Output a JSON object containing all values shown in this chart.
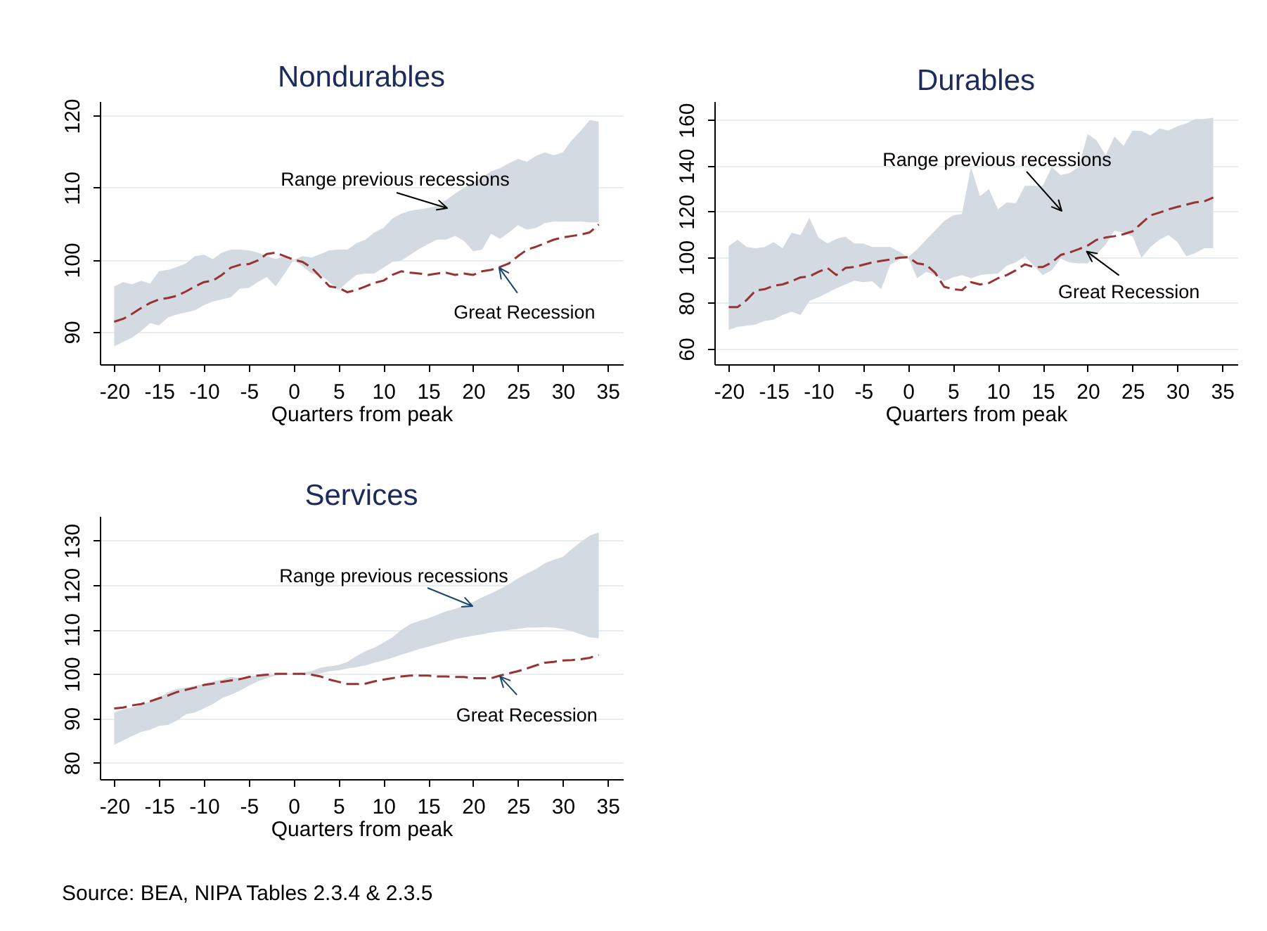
{
  "chart_data": [
    {
      "type": "line",
      "title": "Nondurables",
      "xlabel": "Quarters from peak",
      "x": [
        -20,
        -19,
        -18,
        -17,
        -16,
        -15,
        -14,
        -13,
        -12,
        -11,
        -10,
        -9,
        -8,
        -7,
        -6,
        -5,
        -4,
        -3,
        -2,
        -1,
        0,
        1,
        2,
        3,
        4,
        5,
        6,
        7,
        8,
        9,
        10,
        11,
        12,
        13,
        14,
        15,
        16,
        17,
        18,
        19,
        20,
        21,
        22,
        23,
        24,
        25,
        26,
        27,
        28,
        29,
        30,
        31,
        32,
        33,
        34
      ],
      "xlim": [
        -21.6,
        36.7
      ],
      "xticks": [
        -20,
        -15,
        -10,
        -5,
        0,
        5,
        10,
        15,
        20,
        25,
        30,
        35
      ],
      "ylim": [
        85.5,
        122
      ],
      "yticks": [
        90,
        100,
        110,
        120
      ],
      "grid": "y",
      "line_style": "dashed",
      "series": [
        {
          "color": "#993333",
          "values": [
            91.4,
            91.8,
            92.5,
            93.3,
            94.0,
            94.5,
            94.7,
            95.0,
            95.6,
            96.3,
            96.9,
            97.1,
            97.9,
            98.9,
            99.3,
            99.4,
            99.9,
            100.8,
            101.0,
            100.5,
            100,
            99.7,
            98.9,
            97.6,
            96.3,
            96.1,
            95.5,
            95.8,
            96.3,
            96.8,
            97.1,
            97.9,
            98.4,
            98.2,
            98.1,
            97.9,
            98.1,
            98.2,
            97.9,
            98.1,
            97.9,
            98.4,
            98.6,
            99.0,
            99.5,
            100.5,
            101.4,
            101.8,
            102.3,
            102.8,
            103.1,
            103.3,
            103.5,
            103.8,
            104.9
          ],
          "lower": [
            88.0,
            88.6,
            89.2,
            90.1,
            91.2,
            90.9,
            92.0,
            92.4,
            92.7,
            93.0,
            93.7,
            94.2,
            94.5,
            94.8,
            96.0,
            96.1,
            96.9,
            97.6,
            96.3,
            98.1,
            100,
            99.1,
            98.1,
            97.9,
            96.9,
            95.8,
            96.9,
            97.9,
            98.1,
            98.1,
            98.9,
            99.7,
            99.9,
            100.7,
            101.5,
            102.2,
            102.8,
            102.8,
            103.3,
            102.6,
            101.2,
            101.4,
            103.6,
            102.9,
            103.8,
            104.8,
            104.2,
            104.4,
            105.1,
            105.3,
            105.3,
            105.3,
            105.3,
            105.2,
            105.2
          ],
          "upper": [
            96.3,
            96.9,
            96.6,
            97.1,
            96.7,
            98.4,
            98.6,
            99.0,
            99.5,
            100.5,
            100.7,
            100.1,
            101.0,
            101.4,
            101.4,
            101.3,
            101.0,
            100.5,
            100.1,
            100.5,
            100,
            100.5,
            100.3,
            100.8,
            101.3,
            101.4,
            101.4,
            102.3,
            102.8,
            103.8,
            104.4,
            105.7,
            106.4,
            106.8,
            107.0,
            107.2,
            107.5,
            108.3,
            109.2,
            110.0,
            110.8,
            111.4,
            112.3,
            112.7,
            113.4,
            114.0,
            113.6,
            114.4,
            114.9,
            114.5,
            114.9,
            116.6,
            117.9,
            119.4,
            119.2
          ]
        }
      ],
      "annotations": [
        "Range previous recessions",
        {
          "text": "Great Recession",
          "x": 22.9,
          "y": 98.9
        }
      ]
    },
    {
      "type": "line",
      "title": "Durables",
      "xlabel": "Quarters from peak",
      "x": [
        -20,
        -19,
        -18,
        -17,
        -16,
        -15,
        -14,
        -13,
        -12,
        -11,
        -10,
        -9,
        -8,
        -7,
        -6,
        -5,
        -4,
        -3,
        -2,
        -1,
        0,
        1,
        2,
        3,
        4,
        5,
        6,
        7,
        8,
        9,
        10,
        11,
        12,
        13,
        14,
        15,
        16,
        17,
        18,
        19,
        20,
        21,
        22,
        23,
        24,
        25,
        26,
        27,
        28,
        29,
        30,
        31,
        32,
        33,
        34
      ],
      "xlim": [
        -21.6,
        36.7
      ],
      "xticks": [
        -20,
        -15,
        -10,
        -5,
        0,
        5,
        10,
        15,
        20,
        25,
        30,
        35
      ],
      "ylim": [
        53.2,
        168.2
      ],
      "yticks": [
        60,
        80,
        100,
        120,
        140,
        160
      ],
      "grid": "y",
      "line_style": "dashed",
      "series": [
        {
          "color": "#993333",
          "values": [
            78.2,
            78.2,
            81.3,
            85.4,
            86.0,
            87.5,
            88.1,
            89.5,
            91.2,
            91.6,
            93.6,
            95.3,
            92.2,
            95.3,
            95.7,
            96.7,
            97.7,
            98.4,
            99.0,
            99.8,
            100,
            97.3,
            96.7,
            93.2,
            87.1,
            86.0,
            85.6,
            89.1,
            88.1,
            88.7,
            90.8,
            92.2,
            94.3,
            96.9,
            95.7,
            95.7,
            97.7,
            101.0,
            102.1,
            103.5,
            105.1,
            107.6,
            108.6,
            109.2,
            110.1,
            111.3,
            114.8,
            118.3,
            119.5,
            120.9,
            122.0,
            123.0,
            124.0,
            124.4,
            126.1
          ],
          "lower": [
            68.2,
            69.6,
            70.0,
            70.6,
            72.1,
            72.7,
            74.7,
            76.2,
            74.7,
            80.9,
            82.5,
            84.4,
            86.4,
            88.1,
            89.7,
            89.1,
            89.5,
            86.0,
            96.7,
            99.0,
            100,
            90.8,
            93.6,
            92.2,
            89.5,
            91.2,
            92.2,
            90.8,
            92.2,
            92.6,
            92.8,
            96.3,
            97.7,
            100.4,
            96.3,
            92.2,
            94.3,
            99.4,
            97.7,
            97.3,
            97.3,
            101.4,
            105.5,
            111.7,
            110.7,
            109.2,
            99.8,
            104.5,
            107.6,
            109.7,
            106.6,
            100.4,
            101.8,
            103.9,
            103.9
          ],
          "upper": [
            104.9,
            107.6,
            104.5,
            103.9,
            104.5,
            106.6,
            103.9,
            110.7,
            109.7,
            117.2,
            108.6,
            106.0,
            108.0,
            109.0,
            106.0,
            106.0,
            104.5,
            104.5,
            104.5,
            102.5,
            100,
            103.5,
            107.6,
            111.7,
            115.8,
            118.3,
            118.9,
            139.4,
            126.7,
            129.8,
            120.9,
            124.0,
            123.6,
            131.2,
            131.2,
            131.2,
            139.4,
            135.9,
            136.8,
            139.4,
            153.8,
            151.1,
            144.6,
            152.8,
            148.7,
            155.4,
            155.2,
            153.2,
            156.3,
            155.4,
            157.3,
            158.5,
            160.4,
            160.4,
            161.0
          ]
        }
      ],
      "annotations": [
        "Range previous recessions",
        {
          "text": "Great Recession",
          "x": 19.9,
          "y": 102.5
        }
      ]
    },
    {
      "type": "line",
      "title": "Services",
      "xlabel": "Quarters from peak",
      "x": [
        -20,
        -19,
        -18,
        -17,
        -16,
        -15,
        -14,
        -13,
        -12,
        -11,
        -10,
        -9,
        -8,
        -7,
        -6,
        -5,
        -4,
        -3,
        -2,
        -1,
        0,
        1,
        2,
        3,
        4,
        5,
        6,
        7,
        8,
        9,
        10,
        11,
        12,
        13,
        14,
        15,
        16,
        17,
        18,
        19,
        20,
        21,
        22,
        23,
        24,
        25,
        26,
        27,
        28,
        29,
        30,
        31,
        32,
        33,
        34
      ],
      "xlim": [
        -21.6,
        36.7
      ],
      "xticks": [
        -20,
        -15,
        -10,
        -5,
        0,
        5,
        10,
        15,
        20,
        25,
        30,
        35
      ],
      "ylim": [
        76.3,
        135.5
      ],
      "yticks": [
        80,
        90,
        100,
        110,
        120,
        130
      ],
      "grid": "y",
      "line_style": "dashed",
      "series": [
        {
          "color": "#993333",
          "values": [
            92.2,
            92.4,
            92.9,
            93.2,
            93.8,
            94.5,
            95.1,
            95.9,
            96.4,
            96.9,
            97.5,
            97.8,
            98.2,
            98.5,
            98.8,
            99.3,
            99.6,
            99.8,
            100,
            100,
            100,
            100,
            99.8,
            99.4,
            98.7,
            98.2,
            97.7,
            97.7,
            97.8,
            98.3,
            98.7,
            99.0,
            99.4,
            99.6,
            99.6,
            99.6,
            99.4,
            99.4,
            99.3,
            99.3,
            99.0,
            99.0,
            99.0,
            99.6,
            100.1,
            100.6,
            101.2,
            101.9,
            102.5,
            102.7,
            103.0,
            103.1,
            103.3,
            103.6,
            104.3
          ],
          "lower": [
            84.0,
            85.0,
            86.0,
            86.9,
            87.4,
            88.3,
            88.5,
            89.5,
            90.9,
            91.3,
            92.2,
            93.2,
            94.5,
            95.3,
            96.2,
            97.3,
            98.3,
            99.0,
            99.6,
            99.8,
            100,
            99.8,
            99.8,
            100.1,
            100.6,
            100.8,
            101.2,
            101.5,
            101.9,
            102.5,
            103.0,
            103.6,
            104.3,
            104.9,
            105.6,
            106.1,
            106.7,
            107.2,
            107.8,
            108.2,
            108.6,
            108.9,
            109.3,
            109.6,
            109.9,
            110.1,
            110.4,
            110.4,
            110.5,
            110.4,
            110.1,
            109.6,
            108.9,
            108.2,
            108.0
          ],
          "upper": [
            91.3,
            92.0,
            92.4,
            93.0,
            93.8,
            94.6,
            95.9,
            96.6,
            96.9,
            97.3,
            97.7,
            98.3,
            98.7,
            99.3,
            99.0,
            99.4,
            99.6,
            99.6,
            99.9,
            100,
            100,
            100.3,
            100.6,
            101.4,
            101.7,
            102.0,
            102.7,
            104.0,
            105.1,
            105.9,
            107.0,
            108.2,
            109.9,
            111.2,
            111.9,
            112.5,
            113.3,
            114.1,
            114.6,
            115.4,
            116.2,
            117.2,
            118.1,
            119.1,
            120.2,
            121.5,
            122.6,
            123.6,
            124.9,
            125.7,
            126.3,
            128.1,
            129.7,
            131.1,
            131.8
          ]
        }
      ],
      "annotations": [
        "Range previous recessions",
        {
          "text": "Great Recession",
          "x": 23.0,
          "y": 99.4
        },
        "Source: BEA, NIPA Tables 2.3.4 & 2.3.5"
      ]
    }
  ]
}
